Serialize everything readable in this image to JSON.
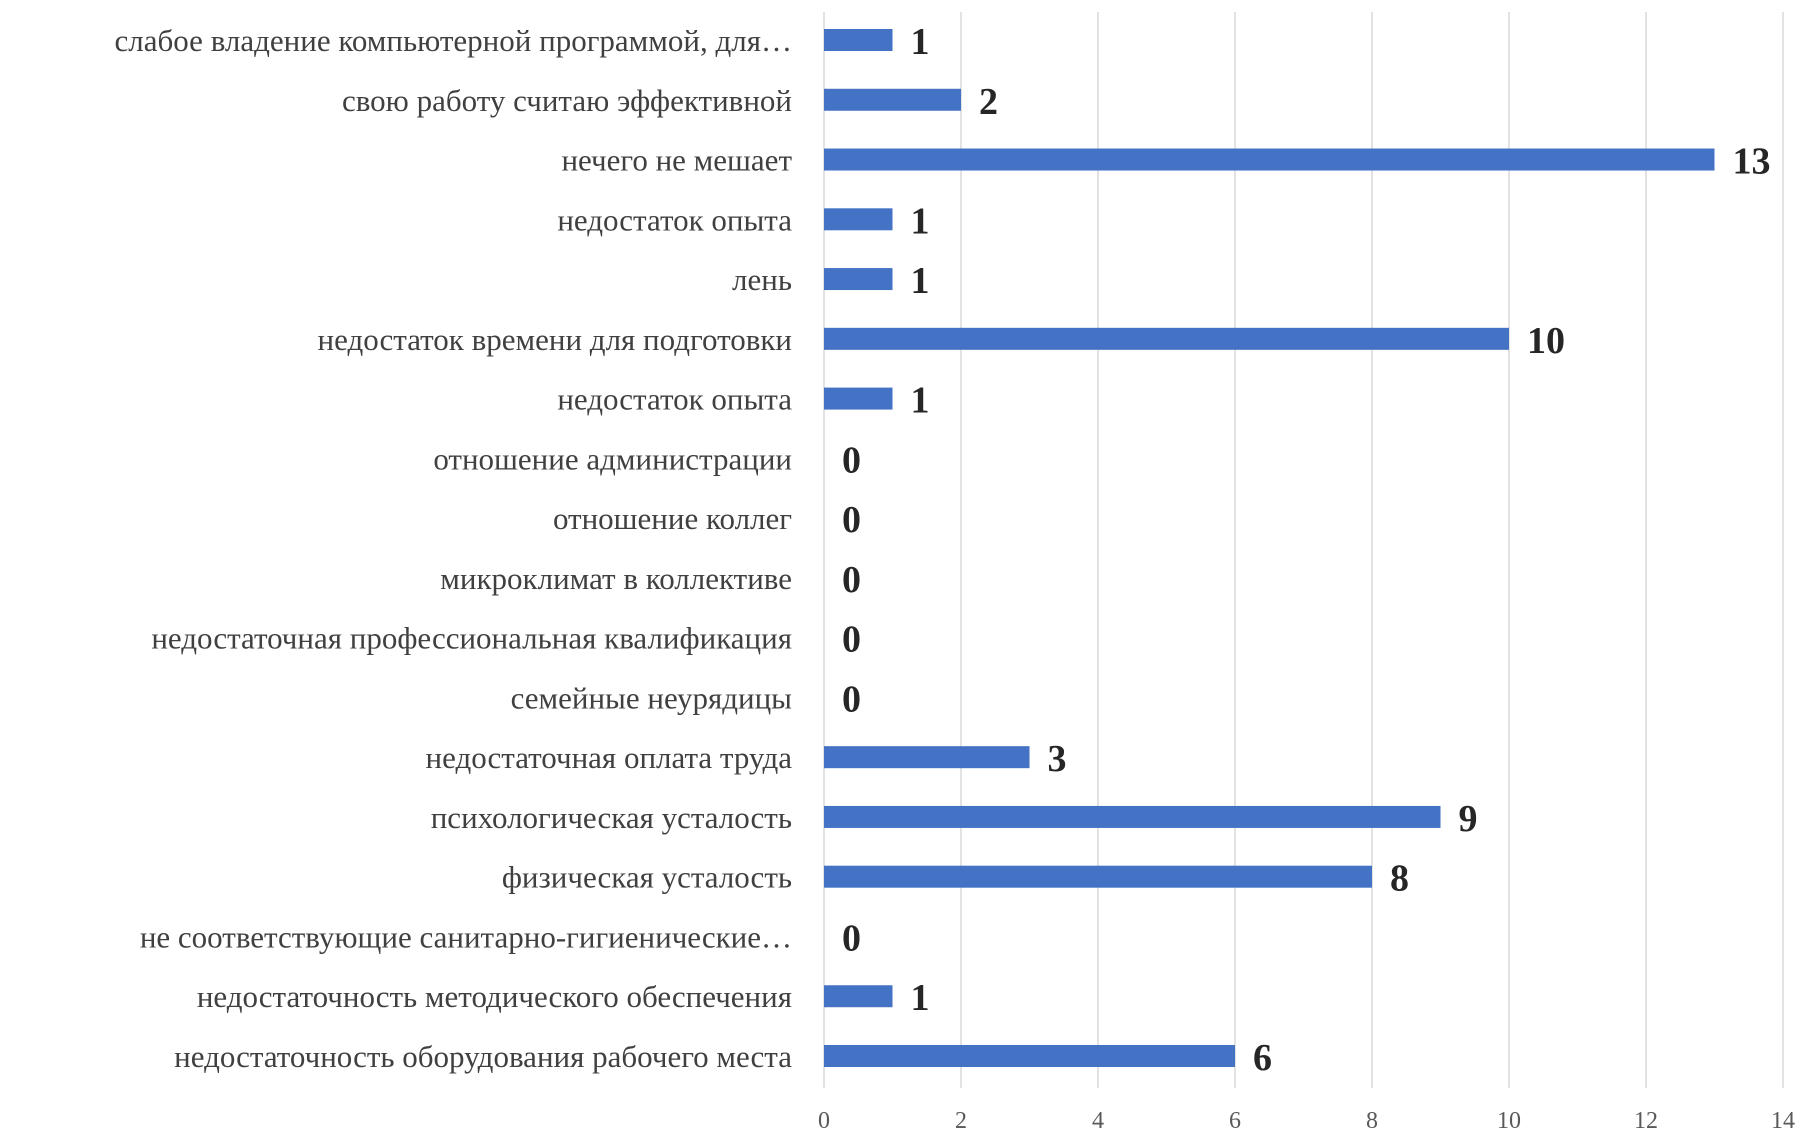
{
  "chart_data": {
    "type": "bar",
    "orientation": "horizontal",
    "categories": [
      "слабое владение компьютерной программой, для…",
      "свою работу считаю эффективной",
      "нечего не мешает",
      "недостаток опыта",
      "лень",
      "недостаток времени для подготовки",
      "недостаток опыта",
      "отношение администрации",
      "отношение коллег",
      "микроклимат в коллективе",
      "недостаточная профессиональная квалификация",
      "семейные неурядицы",
      "недостаточная оплата труда",
      "психологическая усталость",
      "физическая усталость",
      "не соответствующие санитарно-гигиенические…",
      "недостаточность методического обеспечения",
      "недостаточность оборудования рабочего места"
    ],
    "values": [
      1,
      2,
      13,
      1,
      1,
      10,
      1,
      0,
      0,
      0,
      0,
      0,
      3,
      9,
      8,
      0,
      1,
      6
    ],
    "xlim": [
      0,
      14
    ],
    "xticks": [
      0,
      2,
      4,
      6,
      8,
      10,
      12,
      14
    ],
    "grid": "vertical",
    "legend": "none",
    "bar_color": "#4472c4"
  }
}
